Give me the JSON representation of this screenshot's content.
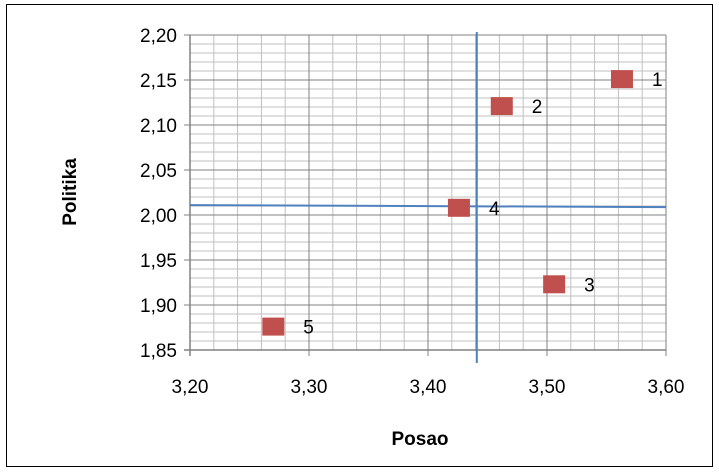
{
  "chart_data": {
    "type": "scatter",
    "xlabel": "Posao",
    "ylabel": "Politika",
    "xlim": [
      3.2,
      3.6
    ],
    "ylim": [
      1.85,
      2.2
    ],
    "x_ticks": [
      "3,20",
      "3,30",
      "3,40",
      "3,50",
      "3,60"
    ],
    "y_ticks": [
      "1,85",
      "1,90",
      "1,95",
      "2,00",
      "2,05",
      "2,10",
      "2,15",
      "2,20"
    ],
    "points": [
      {
        "label": "1",
        "x": 3.563,
        "y": 2.151
      },
      {
        "label": "2",
        "x": 3.462,
        "y": 2.121
      },
      {
        "label": "3",
        "x": 3.506,
        "y": 1.923
      },
      {
        "label": "4",
        "x": 3.426,
        "y": 2.008
      },
      {
        "label": "5",
        "x": 3.27,
        "y": 1.876
      }
    ],
    "reference_lines": {
      "vertical_x": 3.441,
      "horizontal_y": 2.011
    },
    "grid": true,
    "legend": "none",
    "colors": {
      "marker": "#c0504d",
      "reference_line": "#4f81bd",
      "grid_major": "#808080",
      "grid_minor": "#c0c0c0"
    }
  }
}
